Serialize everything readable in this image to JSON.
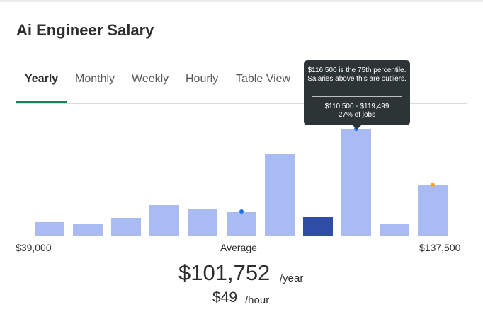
{
  "title": "Ai Engineer Salary",
  "tabs": [
    {
      "label": "Yearly",
      "active": true
    },
    {
      "label": "Monthly",
      "active": false
    },
    {
      "label": "Weekly",
      "active": false
    },
    {
      "label": "Hourly",
      "active": false
    },
    {
      "label": "Table View",
      "active": false
    }
  ],
  "colors": {
    "accent": "#1a7f5a",
    "bar": "#a9bbf2",
    "bar_selected": "#2f4fa6",
    "average_marker": "#1a73e8",
    "percentile_marker": "#1a73e8",
    "high_marker": "#f5a623",
    "tooltip_bg": "#2d3436"
  },
  "chart_data": {
    "type": "bar",
    "bar_count": 11,
    "relative_heights": [
      0.13,
      0.12,
      0.17,
      0.29,
      0.25,
      0.23,
      0.77,
      0.18,
      1.0,
      0.12,
      0.48
    ],
    "selected_index": 7,
    "average_marker_index": 5,
    "percentile_marker_index": 8,
    "high_marker_index": 10,
    "x_min_label": "$39,000",
    "x_center_label": "Average",
    "x_max_label": "$137,500"
  },
  "tooltip": {
    "line1": "$116,500 is the 75th percentile. Salaries above this are outliers.",
    "line2": "$110,500 - $119,499",
    "line3": "27% of jobs"
  },
  "summary": {
    "yearly_amount": "$101,752",
    "yearly_unit": "/year",
    "hourly_amount": "$49",
    "hourly_unit": "/hour"
  }
}
